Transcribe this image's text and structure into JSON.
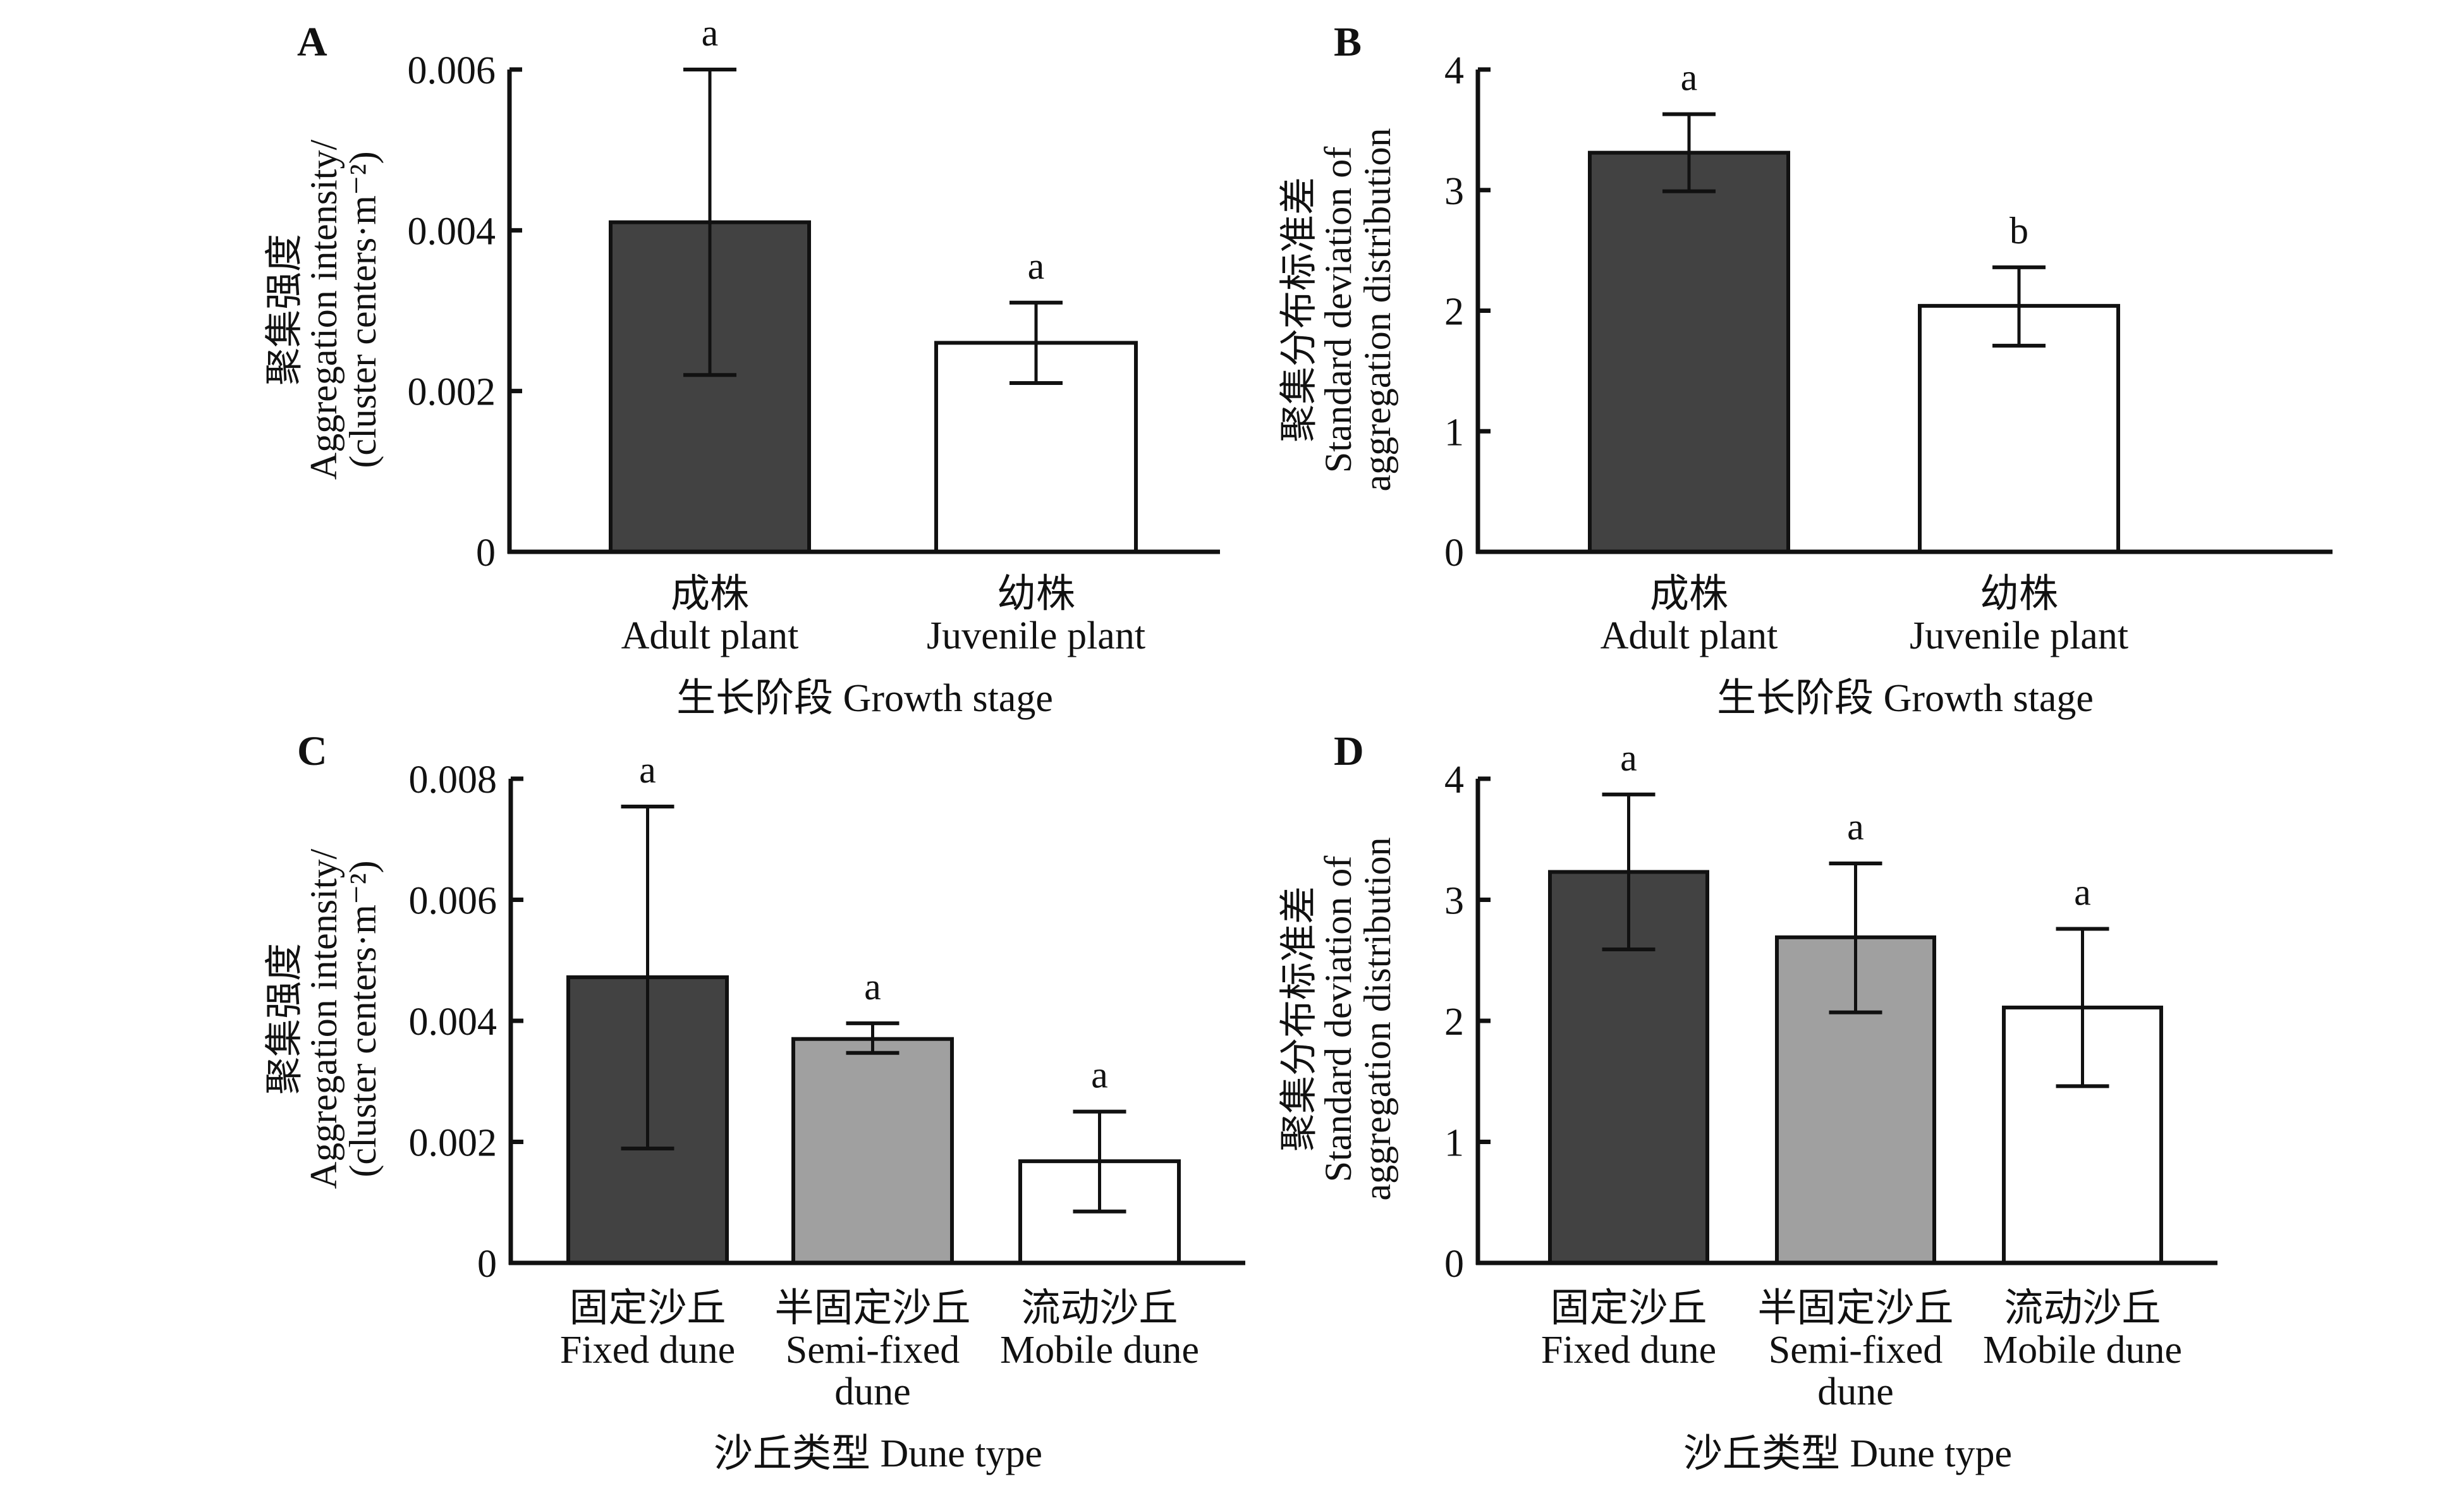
{
  "chart_data": [
    {
      "id": "A",
      "type": "bar",
      "panel_label": "A",
      "ylabel_lines": [
        "聚集强度",
        "Aggregation intensity/",
        "(cluster centers·m⁻²)"
      ],
      "xlabel": "生长阶段 Growth stage",
      "ylim": [
        0,
        0.006
      ],
      "yticks": [
        0,
        0.002,
        0.004,
        0.006
      ],
      "ytick_labels": [
        "0",
        "0.002",
        "0.004",
        "0.006"
      ],
      "categories": [
        {
          "lines": [
            "成株",
            "Adult plant"
          ]
        },
        {
          "lines": [
            "幼株",
            "Juvenile plant"
          ]
        }
      ],
      "values": [
        0.0041,
        0.0026
      ],
      "error_upper": [
        0.006,
        0.0031
      ],
      "error_lower": [
        0.0022,
        0.0021
      ],
      "significance": [
        "a",
        "a"
      ],
      "bar_colors": [
        "#424242",
        "#ffffff"
      ]
    },
    {
      "id": "B",
      "type": "bar",
      "panel_label": "B",
      "ylabel_lines": [
        "聚集分布标准差",
        "Standard deviation of",
        "aggregation distribution"
      ],
      "xlabel": "生长阶段 Growth stage",
      "ylim": [
        0,
        4
      ],
      "yticks": [
        0,
        1,
        2,
        3,
        4
      ],
      "ytick_labels": [
        "0",
        "1",
        "2",
        "3",
        "4"
      ],
      "categories": [
        {
          "lines": [
            "成株",
            "Adult plant"
          ]
        },
        {
          "lines": [
            "幼株",
            "Juvenile plant"
          ]
        }
      ],
      "values": [
        3.31,
        2.04
      ],
      "error_upper": [
        3.63,
        2.36
      ],
      "error_lower": [
        2.99,
        1.71
      ],
      "significance": [
        "a",
        "b"
      ],
      "bar_colors": [
        "#424242",
        "#ffffff"
      ]
    },
    {
      "id": "C",
      "type": "bar",
      "panel_label": "C",
      "ylabel_lines": [
        "聚集强度",
        "Aggregation intensity/",
        "(cluster centers·m⁻²)"
      ],
      "xlabel": "沙丘类型 Dune type",
      "ylim": [
        0,
        0.008
      ],
      "yticks": [
        0,
        0.002,
        0.004,
        0.006,
        0.008
      ],
      "ytick_labels": [
        "0",
        "0.002",
        "0.004",
        "0.006",
        "0.008"
      ],
      "categories": [
        {
          "lines": [
            "固定沙丘",
            "Fixed dune"
          ]
        },
        {
          "lines": [
            "半固定沙丘",
            "Semi-fixed",
            "dune"
          ]
        },
        {
          "lines": [
            "流动沙丘",
            "Mobile dune"
          ]
        }
      ],
      "values": [
        0.00472,
        0.0037,
        0.00168
      ],
      "error_upper": [
        0.00754,
        0.00396,
        0.0025
      ],
      "error_lower": [
        0.00189,
        0.00347,
        0.00085
      ],
      "significance": [
        "a",
        "a",
        "a"
      ],
      "bar_colors": [
        "#424242",
        "#a0a0a0",
        "#ffffff"
      ]
    },
    {
      "id": "D",
      "type": "bar",
      "panel_label": "D",
      "ylabel_lines": [
        "聚集分布标准差",
        "Standard deviation of",
        "aggregation distribution"
      ],
      "xlabel": "沙丘类型 Dune type",
      "ylim": [
        0,
        4
      ],
      "yticks": [
        0,
        1,
        2,
        3,
        4
      ],
      "ytick_labels": [
        "0",
        "1",
        "2",
        "3",
        "4"
      ],
      "categories": [
        {
          "lines": [
            "固定沙丘",
            "Fixed dune"
          ]
        },
        {
          "lines": [
            "半固定沙丘",
            "Semi-fixed",
            "dune"
          ]
        },
        {
          "lines": [
            "流动沙丘",
            "Mobile dune"
          ]
        }
      ],
      "values": [
        3.23,
        2.69,
        2.11
      ],
      "error_upper": [
        3.87,
        3.3,
        2.76
      ],
      "error_lower": [
        2.59,
        2.07,
        1.46
      ],
      "significance": [
        "a",
        "a",
        "a"
      ],
      "bar_colors": [
        "#424242",
        "#a0a0a0",
        "#ffffff"
      ]
    }
  ]
}
